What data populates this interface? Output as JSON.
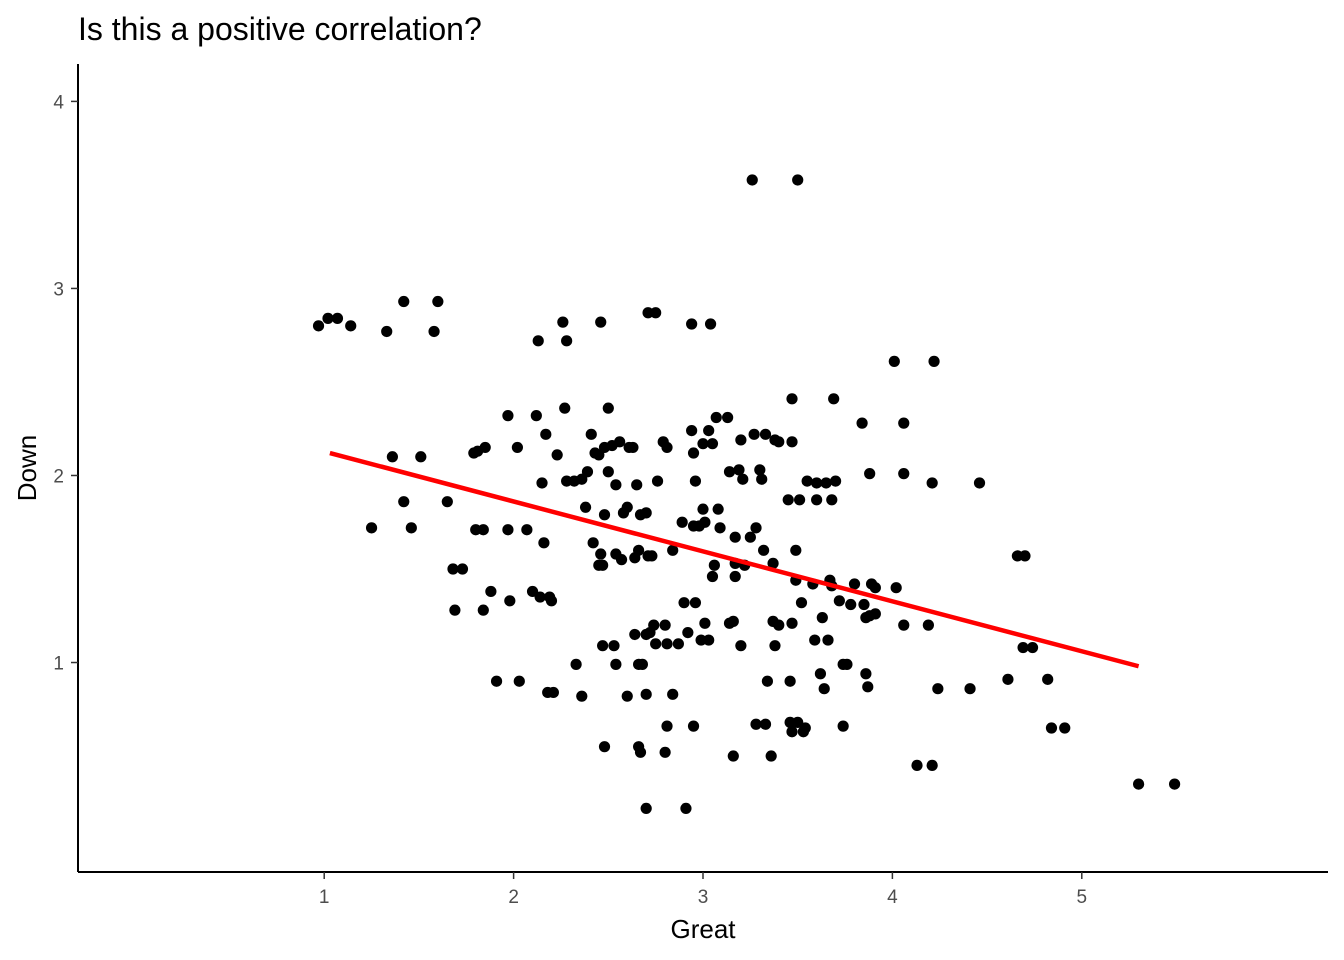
{
  "chart_data": {
    "type": "scatter",
    "title": "Is this a positive correlation?",
    "xlabel": "Great",
    "ylabel": "Down",
    "xlim": [
      -0.3,
      6.3
    ],
    "ylim": [
      -0.12,
      4.2
    ],
    "xticks": [
      1,
      2,
      3,
      4,
      5
    ],
    "yticks": [
      1,
      2,
      3,
      4
    ],
    "grid": false,
    "legend": "none",
    "point_color": "#000000",
    "fit_color": "#ff0000",
    "fit_line": {
      "x": [
        1.03,
        5.3
      ],
      "y": [
        2.12,
        0.98
      ]
    },
    "points": [
      [
        0.97,
        2.8
      ],
      [
        1.02,
        2.84
      ],
      [
        1.07,
        2.84
      ],
      [
        1.14,
        2.8
      ],
      [
        1.33,
        2.77
      ],
      [
        1.42,
        2.93
      ],
      [
        1.58,
        2.77
      ],
      [
        1.6,
        2.93
      ],
      [
        1.36,
        2.1
      ],
      [
        1.51,
        2.1
      ],
      [
        1.42,
        1.86
      ],
      [
        1.25,
        1.72
      ],
      [
        1.46,
        1.72
      ],
      [
        1.65,
        1.86
      ],
      [
        1.68,
        1.5
      ],
      [
        1.73,
        1.5
      ],
      [
        1.69,
        1.28
      ],
      [
        1.84,
        1.28
      ],
      [
        1.88,
        1.38
      ],
      [
        1.79,
        2.12
      ],
      [
        1.81,
        2.13
      ],
      [
        1.85,
        2.15
      ],
      [
        1.8,
        1.71
      ],
      [
        1.84,
        1.71
      ],
      [
        1.97,
        1.71
      ],
      [
        2.07,
        1.71
      ],
      [
        1.97,
        2.32
      ],
      [
        2.12,
        2.32
      ],
      [
        2.02,
        2.15
      ],
      [
        2.17,
        2.22
      ],
      [
        2.15,
        1.96
      ],
      [
        1.91,
        0.9
      ],
      [
        2.03,
        0.9
      ],
      [
        1.98,
        1.33
      ],
      [
        2.1,
        1.38
      ],
      [
        2.14,
        1.35
      ],
      [
        2.19,
        1.35
      ],
      [
        2.2,
        1.33
      ],
      [
        2.16,
        1.64
      ],
      [
        2.18,
        0.84
      ],
      [
        2.21,
        0.84
      ],
      [
        2.13,
        2.72
      ],
      [
        2.26,
        2.82
      ],
      [
        2.28,
        2.72
      ],
      [
        2.46,
        2.82
      ],
      [
        2.23,
        2.11
      ],
      [
        2.27,
        2.36
      ],
      [
        2.28,
        1.97
      ],
      [
        2.32,
        1.97
      ],
      [
        2.36,
        1.98
      ],
      [
        2.39,
        2.02
      ],
      [
        2.41,
        2.22
      ],
      [
        2.43,
        2.12
      ],
      [
        2.45,
        2.11
      ],
      [
        2.48,
        2.15
      ],
      [
        2.5,
        2.36
      ],
      [
        2.52,
        2.16
      ],
      [
        2.56,
        2.18
      ],
      [
        2.61,
        2.15
      ],
      [
        2.63,
        2.15
      ],
      [
        2.38,
        1.83
      ],
      [
        2.42,
        1.64
      ],
      [
        2.45,
        1.52
      ],
      [
        2.46,
        1.58
      ],
      [
        2.48,
        1.79
      ],
      [
        2.5,
        2.02
      ],
      [
        2.54,
        1.95
      ],
      [
        2.54,
        1.58
      ],
      [
        2.57,
        1.55
      ],
      [
        2.58,
        1.8
      ],
      [
        2.6,
        1.83
      ],
      [
        2.64,
        1.56
      ],
      [
        2.65,
        1.95
      ],
      [
        2.66,
        1.6
      ],
      [
        2.67,
        1.79
      ],
      [
        2.7,
        1.8
      ],
      [
        2.71,
        1.57
      ],
      [
        2.73,
        1.57
      ],
      [
        2.47,
        1.52
      ],
      [
        2.71,
        2.87
      ],
      [
        2.75,
        2.87
      ],
      [
        2.94,
        2.81
      ],
      [
        3.04,
        2.81
      ],
      [
        2.76,
        1.97
      ],
      [
        2.79,
        2.18
      ],
      [
        2.81,
        2.15
      ],
      [
        2.84,
        1.6
      ],
      [
        2.89,
        1.75
      ],
      [
        2.94,
        2.24
      ],
      [
        2.95,
        2.12
      ],
      [
        2.96,
        1.97
      ],
      [
        2.95,
        1.73
      ],
      [
        2.98,
        1.73
      ],
      [
        3.0,
        2.17
      ],
      [
        3.0,
        1.82
      ],
      [
        3.01,
        1.75
      ],
      [
        3.03,
        2.24
      ],
      [
        3.05,
        2.17
      ],
      [
        3.06,
        1.52
      ],
      [
        3.05,
        1.46
      ],
      [
        3.07,
        2.31
      ],
      [
        3.08,
        1.82
      ],
      [
        3.09,
        1.72
      ],
      [
        3.13,
        2.31
      ],
      [
        3.14,
        2.02
      ],
      [
        3.17,
        1.67
      ],
      [
        3.17,
        1.53
      ],
      [
        3.17,
        1.46
      ],
      [
        3.19,
        2.03
      ],
      [
        3.2,
        2.19
      ],
      [
        3.21,
        1.98
      ],
      [
        3.22,
        1.52
      ],
      [
        3.25,
        1.67
      ],
      [
        3.27,
        2.22
      ],
      [
        3.28,
        1.72
      ],
      [
        3.3,
        2.03
      ],
      [
        3.31,
        1.98
      ],
      [
        3.32,
        1.6
      ],
      [
        3.33,
        2.22
      ],
      [
        3.37,
        1.53
      ],
      [
        3.38,
        2.19
      ],
      [
        3.4,
        2.18
      ],
      [
        3.26,
        3.58
      ],
      [
        3.5,
        3.58
      ],
      [
        2.47,
        1.09
      ],
      [
        2.53,
        1.09
      ],
      [
        2.33,
        0.99
      ],
      [
        2.36,
        0.82
      ],
      [
        2.54,
        0.99
      ],
      [
        2.6,
        0.82
      ],
      [
        2.64,
        1.15
      ],
      [
        2.66,
        0.99
      ],
      [
        2.68,
        0.99
      ],
      [
        2.7,
        1.15
      ],
      [
        2.72,
        1.16
      ],
      [
        2.74,
        1.2
      ],
      [
        2.75,
        1.1
      ],
      [
        2.8,
        1.2
      ],
      [
        2.81,
        1.1
      ],
      [
        2.87,
        1.1
      ],
      [
        2.9,
        1.32
      ],
      [
        2.92,
        1.16
      ],
      [
        2.96,
        1.32
      ],
      [
        2.99,
        1.12
      ],
      [
        3.01,
        1.21
      ],
      [
        3.03,
        1.12
      ],
      [
        3.14,
        1.21
      ],
      [
        3.16,
        1.22
      ],
      [
        3.2,
        1.09
      ],
      [
        2.7,
        0.83
      ],
      [
        2.84,
        0.83
      ],
      [
        2.81,
        0.66
      ],
      [
        2.95,
        0.66
      ],
      [
        2.48,
        0.55
      ],
      [
        2.66,
        0.55
      ],
      [
        2.67,
        0.52
      ],
      [
        2.8,
        0.52
      ],
      [
        2.7,
        0.22
      ],
      [
        2.91,
        0.22
      ],
      [
        3.16,
        0.5
      ],
      [
        3.36,
        0.5
      ],
      [
        3.28,
        0.67
      ],
      [
        3.33,
        0.67
      ],
      [
        3.46,
        0.68
      ],
      [
        3.5,
        0.68
      ],
      [
        3.54,
        0.65
      ],
      [
        3.47,
        0.63
      ],
      [
        3.53,
        0.63
      ],
      [
        3.34,
        0.9
      ],
      [
        3.46,
        0.9
      ],
      [
        3.37,
        1.22
      ],
      [
        3.4,
        1.2
      ],
      [
        3.38,
        1.09
      ],
      [
        3.47,
        1.21
      ],
      [
        3.47,
        2.41
      ],
      [
        3.47,
        2.18
      ],
      [
        3.45,
        1.87
      ],
      [
        3.49,
        1.6
      ],
      [
        3.49,
        1.44
      ],
      [
        3.51,
        1.87
      ],
      [
        3.52,
        1.32
      ],
      [
        3.55,
        1.97
      ],
      [
        3.58,
        1.42
      ],
      [
        3.59,
        1.12
      ],
      [
        3.6,
        1.96
      ],
      [
        3.6,
        1.87
      ],
      [
        3.62,
        0.94
      ],
      [
        3.63,
        1.24
      ],
      [
        3.64,
        0.86
      ],
      [
        3.65,
        1.96
      ],
      [
        3.66,
        1.12
      ],
      [
        3.67,
        1.44
      ],
      [
        3.68,
        1.87
      ],
      [
        3.68,
        1.41
      ],
      [
        3.69,
        2.41
      ],
      [
        3.7,
        1.97
      ],
      [
        3.72,
        1.33
      ],
      [
        3.74,
        0.66
      ],
      [
        3.74,
        0.99
      ],
      [
        3.76,
        0.99
      ],
      [
        3.78,
        1.31
      ],
      [
        3.8,
        1.42
      ],
      [
        3.84,
        2.28
      ],
      [
        3.85,
        1.31
      ],
      [
        3.86,
        1.24
      ],
      [
        3.86,
        0.94
      ],
      [
        3.87,
        0.87
      ],
      [
        3.88,
        1.25
      ],
      [
        3.88,
        2.01
      ],
      [
        3.89,
        1.42
      ],
      [
        3.91,
        1.26
      ],
      [
        3.91,
        1.4
      ],
      [
        4.01,
        2.61
      ],
      [
        4.02,
        1.4
      ],
      [
        4.06,
        2.28
      ],
      [
        4.06,
        2.01
      ],
      [
        4.06,
        1.2
      ],
      [
        4.19,
        1.2
      ],
      [
        4.22,
        2.61
      ],
      [
        4.21,
        1.96
      ],
      [
        4.24,
        0.86
      ],
      [
        4.41,
        0.86
      ],
      [
        4.13,
        0.45
      ],
      [
        4.21,
        0.45
      ],
      [
        4.46,
        1.96
      ],
      [
        4.61,
        0.91
      ],
      [
        4.66,
        1.57
      ],
      [
        4.7,
        1.57
      ],
      [
        4.69,
        1.08
      ],
      [
        4.74,
        1.08
      ],
      [
        4.82,
        0.91
      ],
      [
        4.84,
        0.65
      ],
      [
        4.91,
        0.65
      ],
      [
        5.3,
        0.35
      ],
      [
        5.49,
        0.35
      ]
    ]
  }
}
